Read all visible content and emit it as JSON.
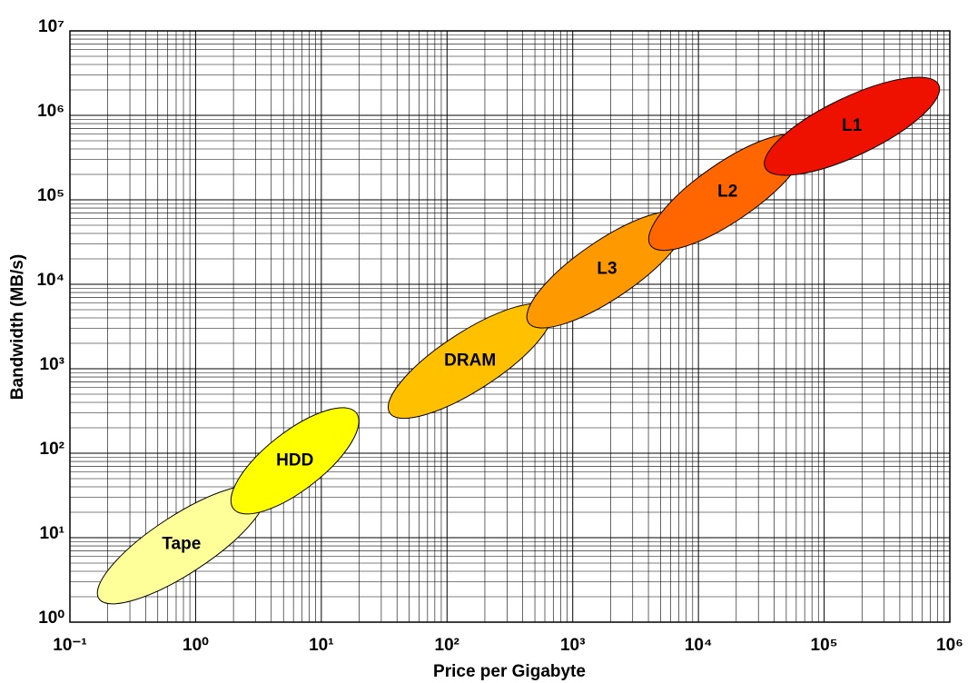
{
  "chart_data": {
    "type": "ellipse-region",
    "x_label": "Price per Gigabyte",
    "y_label": "Bandwidth (MB/s)",
    "log_x": true,
    "log_y": true,
    "grid": true,
    "minor_grid": true,
    "xlim": [
      0.1,
      1000000
    ],
    "ylim": [
      1,
      10000000
    ],
    "xticks": [
      {
        "value": 0.1,
        "label": "10⁻¹"
      },
      {
        "value": 1,
        "label": "10⁰"
      },
      {
        "value": 10,
        "label": "10¹"
      },
      {
        "value": 100,
        "label": "10²"
      },
      {
        "value": 1000,
        "label": "10³"
      },
      {
        "value": 10000,
        "label": "10⁴"
      },
      {
        "value": 100000,
        "label": "10⁵"
      },
      {
        "value": 1000000,
        "label": "10⁶"
      }
    ],
    "yticks": [
      {
        "value": 1,
        "label": "10⁰"
      },
      {
        "value": 10,
        "label": "10¹"
      },
      {
        "value": 100,
        "label": "10²"
      },
      {
        "value": 1000,
        "label": "10³"
      },
      {
        "value": 10000,
        "label": "10⁴"
      },
      {
        "value": 100000,
        "label": "10⁵"
      },
      {
        "value": 1000000,
        "label": "10⁶"
      },
      {
        "value": 10000000,
        "label": "10⁷"
      }
    ],
    "series": [
      {
        "name": "Tape",
        "color": "#ffff99",
        "x": [
          0.17,
          3.5
        ],
        "y": [
          1.9,
          36
        ]
      },
      {
        "name": "HDD",
        "color": "#ffff00",
        "x": [
          2.0,
          19
        ],
        "y": [
          22,
          300
        ]
      },
      {
        "name": "DRAM",
        "color": "#ffc000",
        "x": [
          35,
          665
        ],
        "y": [
          300,
          5100
        ]
      },
      {
        "name": "L3",
        "color": "#ff9900",
        "x": [
          445,
          7900
        ],
        "y": [
          3500,
          64000
        ]
      },
      {
        "name": "L2",
        "color": "#ff6600",
        "x": [
          4150,
          70000
        ],
        "y": [
          29000,
          525000
        ]
      },
      {
        "name": "L1",
        "color": "#ee1100",
        "x": [
          34000,
          815000
        ],
        "y": [
          240000,
          2300000
        ]
      }
    ]
  }
}
